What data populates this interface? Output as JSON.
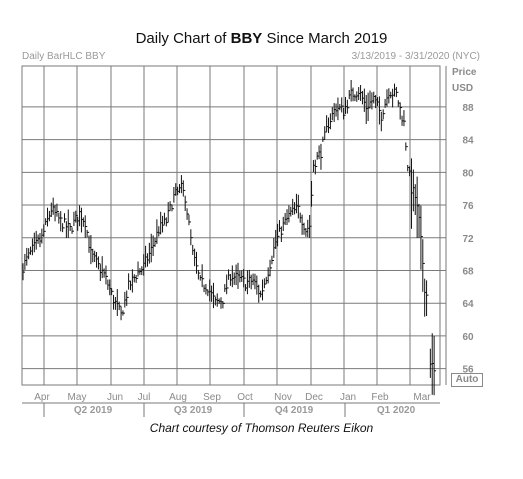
{
  "title": {
    "prefix": "Daily Chart of ",
    "symbol": "BBY",
    "suffix": " Since March 2019"
  },
  "subtitle_left": "Daily BarHLC BBY",
  "subtitle_right": "3/13/2019 - 3/31/2020 (NYC)",
  "price_label": "Price",
  "currency_label": "USD",
  "auto_button": "Auto",
  "credit": "Chart courtesy of Thomson Reuters Eikon",
  "colors": {
    "bars": "#111111",
    "grid": "#7a7a7a",
    "axis_text": "#8a8a8a",
    "quarter_text": "#9a9a9a"
  },
  "chart_data": {
    "type": "bar",
    "style": "HLC",
    "ylim": [
      54,
      93
    ],
    "y_ticks": [
      56,
      60,
      64,
      68,
      72,
      76,
      80,
      84,
      88
    ],
    "grid": true,
    "months": [
      "Apr",
      "May",
      "Jun",
      "Jul",
      "Aug",
      "Sep",
      "Oct",
      "Nov",
      "Dec",
      "Jan",
      "Feb",
      "Mar"
    ],
    "quarters": [
      "Q2 2019",
      "Q3 2019",
      "Q4 2019",
      "Q1 2020"
    ],
    "price_path": [
      [
        0,
        68.5
      ],
      [
        5,
        70.5
      ],
      [
        10,
        72
      ],
      [
        15,
        75.5
      ],
      [
        20,
        74
      ],
      [
        25,
        73
      ],
      [
        30,
        75
      ],
      [
        33,
        74
      ],
      [
        36,
        70
      ],
      [
        40,
        68.5
      ],
      [
        43,
        67.5
      ],
      [
        48,
        64.5
      ],
      [
        52,
        62.5
      ],
      [
        56,
        66
      ],
      [
        60,
        67.5
      ],
      [
        64,
        68.5
      ],
      [
        68,
        70.5
      ],
      [
        72,
        73
      ],
      [
        76,
        74
      ],
      [
        80,
        77
      ],
      [
        84,
        78
      ],
      [
        86,
        77
      ],
      [
        90,
        70
      ],
      [
        94,
        66.5
      ],
      [
        98,
        66
      ],
      [
        102,
        64
      ],
      [
        106,
        64.5
      ],
      [
        110,
        67.5
      ],
      [
        114,
        67
      ],
      [
        118,
        66.5
      ],
      [
        122,
        66.8
      ],
      [
        126,
        65
      ],
      [
        130,
        68
      ],
      [
        134,
        71.5
      ],
      [
        138,
        73.5
      ],
      [
        142,
        75
      ],
      [
        146,
        75.5
      ],
      [
        150,
        73
      ],
      [
        152,
        73.5
      ],
      [
        154,
        81
      ],
      [
        158,
        82.5
      ],
      [
        162,
        86
      ],
      [
        166,
        88
      ],
      [
        170,
        87.5
      ],
      [
        174,
        89.5
      ],
      [
        178,
        90
      ],
      [
        182,
        88
      ],
      [
        186,
        89
      ],
      [
        190,
        87
      ],
      [
        194,
        90
      ],
      [
        198,
        89.5
      ],
      [
        202,
        86
      ],
      [
        204,
        81
      ],
      [
        206,
        78
      ],
      [
        208,
        77
      ],
      [
        210,
        74
      ],
      [
        212,
        69
      ],
      [
        213,
        66
      ],
      [
        214,
        65
      ],
      [
        216,
        57
      ],
      [
        218,
        55.5
      ]
    ]
  }
}
